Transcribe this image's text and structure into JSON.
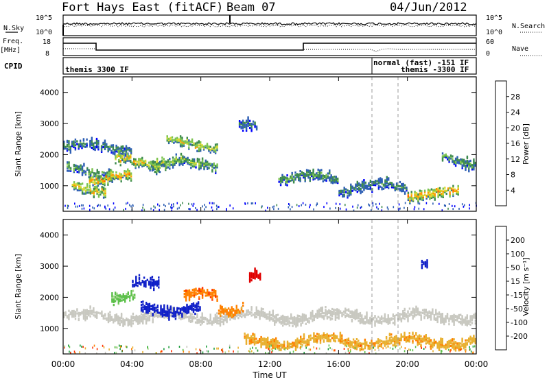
{
  "header": {
    "radar": "Fort Hays East (fitACF)",
    "beam": "Beam 07",
    "date": "04/Jun/2012"
  },
  "top_panels": {
    "nsky_label": "N.Sky",
    "nsky_ticks": [
      "10^5",
      "10^0"
    ],
    "nsearch_label": "N.Search",
    "nsearch_ticks": [
      "10^5",
      "10^0"
    ],
    "freq_label": "Freq.",
    "freq_unit": "[MHz]",
    "freq_ticks": [
      "18",
      "8"
    ],
    "nave_label": "Nave",
    "nave_ticks": [
      "60",
      "0"
    ],
    "cpid_label": "CPID",
    "cpid_segments": [
      "themis 3300 IF",
      "normal (fast) -151 IF",
      "themis -3300 IF"
    ]
  },
  "power_panel": {
    "ylabel": "Slant Range [km]",
    "yticks": [
      "4000",
      "3000",
      "2000",
      "1000"
    ],
    "colorbar_label": "Power [dB]",
    "colorbar_ticks": [
      "28",
      "24",
      "20",
      "16",
      "12",
      "8",
      "4"
    ],
    "colors": [
      "#0000ff",
      "#2e5fb4",
      "#3e8a4f",
      "#7cc450",
      "#d8d830",
      "#ff9800",
      "#ff5a00",
      "#e80000"
    ]
  },
  "velocity_panel": {
    "ylabel": "Slant Range [km]",
    "yticks": [
      "4000",
      "3000",
      "2000",
      "1000"
    ],
    "colorbar_label": "Velocity [m s⁻¹]",
    "colorbar_ticks": [
      "200",
      "100",
      "50",
      "15",
      "-15",
      "-50",
      "-100",
      "-200"
    ],
    "colors": [
      "#1020c8",
      "#1e9e3c",
      "#5cc04a",
      "#a8d890",
      "#c8c8c0",
      "#e8b030",
      "#ff8000",
      "#ff3000",
      "#e00000"
    ]
  },
  "xaxis": {
    "ticks": [
      "00:00",
      "04:00",
      "08:00",
      "12:00",
      "16:00",
      "20:00",
      "00:00"
    ],
    "label": "Time UT"
  },
  "chart_data": [
    {
      "type": "heatmap",
      "title": "Fort Hays East (fitACF) Beam 07 04/Jun/2012",
      "xlabel": "Time UT",
      "ylabel": "Slant Range [km]",
      "colorbar": "Power [dB]",
      "x_ticks": [
        "00:00",
        "04:00",
        "08:00",
        "12:00",
        "16:00",
        "20:00",
        "00:00"
      ],
      "ylim": [
        180,
        4500
      ],
      "clim": [
        0,
        30
      ],
      "echo_bands": [
        {
          "t_start": 0.0,
          "t_end": 4.0,
          "range_center": 2250,
          "level": 10
        },
        {
          "t_start": 0.2,
          "t_end": 3.0,
          "range_center": 1450,
          "level": 12
        },
        {
          "t_start": 0.5,
          "t_end": 2.5,
          "range_center": 950,
          "level": 20
        },
        {
          "t_start": 1.5,
          "t_end": 4.0,
          "range_center": 1250,
          "level": 22
        },
        {
          "t_start": 3.0,
          "t_end": 6.0,
          "range_center": 1800,
          "level": 20
        },
        {
          "t_start": 5.0,
          "t_end": 9.0,
          "range_center": 1700,
          "level": 14
        },
        {
          "t_start": 6.0,
          "t_end": 9.0,
          "range_center": 2350,
          "level": 18
        },
        {
          "t_start": 10.2,
          "t_end": 11.3,
          "range_center": 2900,
          "level": 8
        },
        {
          "t_start": 12.5,
          "t_end": 16.0,
          "range_center": 1250,
          "level": 12
        },
        {
          "t_start": 16.0,
          "t_end": 20.0,
          "range_center": 950,
          "level": 10
        },
        {
          "t_start": 20.0,
          "t_end": 23.0,
          "range_center": 750,
          "level": 22
        },
        {
          "t_start": 22.0,
          "t_end": 24.0,
          "range_center": 1800,
          "level": 12
        }
      ]
    },
    {
      "type": "heatmap",
      "xlabel": "Time UT",
      "ylabel": "Slant Range [km]",
      "colorbar": "Velocity [m s⁻¹]",
      "x_ticks": [
        "00:00",
        "04:00",
        "08:00",
        "12:00",
        "16:00",
        "20:00",
        "00:00"
      ],
      "ylim": [
        180,
        4500
      ],
      "clim": [
        -200,
        200
      ],
      "echo_bands": [
        {
          "t_start": 0.0,
          "t_end": 24.0,
          "range_center": 1400,
          "velocity": 0
        },
        {
          "t_start": 2.8,
          "t_end": 4.2,
          "range_center": 2100,
          "velocity": 60
        },
        {
          "t_start": 4.0,
          "t_end": 5.6,
          "range_center": 2400,
          "velocity": 230
        },
        {
          "t_start": 4.5,
          "t_end": 8.0,
          "range_center": 1650,
          "velocity": 250
        },
        {
          "t_start": 7.0,
          "t_end": 9.0,
          "range_center": 2050,
          "velocity": -90
        },
        {
          "t_start": 9.0,
          "t_end": 10.5,
          "range_center": 1700,
          "velocity": -60
        },
        {
          "t_start": 10.8,
          "t_end": 11.5,
          "range_center": 2600,
          "velocity": -250
        },
        {
          "t_start": 10.5,
          "t_end": 24.0,
          "range_center": 600,
          "velocity": -40
        },
        {
          "t_start": 20.8,
          "t_end": 21.2,
          "range_center": 3150,
          "velocity": 230
        }
      ]
    }
  ]
}
